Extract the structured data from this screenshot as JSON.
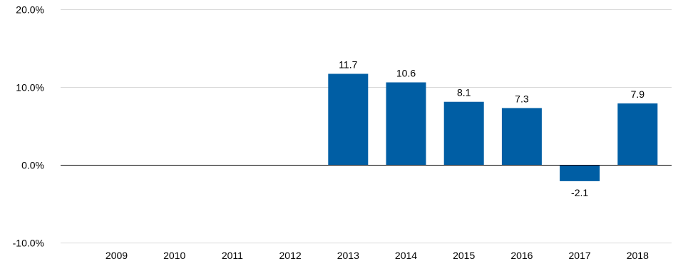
{
  "chart_data": {
    "type": "bar",
    "categories": [
      "2009",
      "2010",
      "2011",
      "2012",
      "2013",
      "2014",
      "2015",
      "2016",
      "2017",
      "2018"
    ],
    "values": [
      null,
      null,
      null,
      null,
      11.7,
      10.6,
      8.1,
      7.3,
      -2.1,
      7.9
    ],
    "data_labels": [
      "",
      "",
      "",
      "",
      "11.7",
      "10.6",
      "8.1",
      "7.3",
      "-2.1",
      "7.9"
    ],
    "title": "",
    "xlabel": "",
    "ylabel": "",
    "ylim": [
      -10,
      20
    ],
    "y_ticks": [
      20,
      10,
      0,
      -10
    ],
    "y_tick_labels": [
      "20.0%",
      "10.0%",
      "0.0%",
      "-10.0%"
    ],
    "grid": true,
    "legend": "none",
    "colors": {
      "bar": "#005ea4",
      "grid": "#d9d9d9",
      "zero_line": "#000000",
      "text": "#000000"
    }
  }
}
